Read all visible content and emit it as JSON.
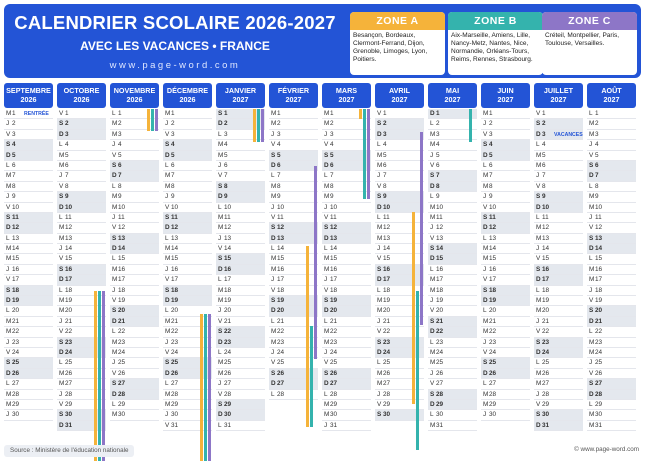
{
  "title": "CALENDRIER SCOLAIRE 2026-2027",
  "subtitle": "AVEC LES VACANCES • FRANCE",
  "website": "www.page-word.com",
  "colors": {
    "primary": "#2354d6",
    "zone_a": "#f5b33a",
    "zone_b": "#34b3ad",
    "zone_c": "#8d76c7"
  },
  "zones": [
    {
      "label": "ZONE A",
      "color": "#f5b33a",
      "cities": "Besançon, Bordeaux, Clermont-Ferrand, Dijon, Grenoble, Limoges, Lyon, Poitiers."
    },
    {
      "label": "ZONE B",
      "color": "#34b3ad",
      "cities": "Aix-Marseille, Amiens, Lille, Nancy-Metz, Nantes, Nice, Normandie, Orléans-Tours, Reims, Rennes, Strasbourg."
    },
    {
      "label": "ZONE C",
      "color": "#8d76c7",
      "cities": "Créteil, Montpellier, Paris, Toulouse, Versailles."
    }
  ],
  "months": [
    {
      "name": "SEPTEMBRE",
      "year": "2026",
      "start": 2,
      "days": 30,
      "notes": {
        "1": "RENTRÉE"
      },
      "vacations": []
    },
    {
      "name": "OCTOBRE",
      "year": "2026",
      "start": 4,
      "days": 31,
      "notes": {},
      "vacations": [
        {
          "zone": "zone_a",
          "from": 17,
          "to": 31
        },
        {
          "zone": "zone_b",
          "from": 17,
          "to": 31
        },
        {
          "zone": "zone_c",
          "from": 17,
          "to": 31
        }
      ]
    },
    {
      "name": "NOVEMBRE",
      "year": "2026",
      "start": 0,
      "days": 30,
      "notes": {},
      "vacations": [
        {
          "zone": "zone_a",
          "from": 1,
          "to": 2
        },
        {
          "zone": "zone_b",
          "from": 1,
          "to": 2
        },
        {
          "zone": "zone_c",
          "from": 1,
          "to": 2
        }
      ]
    },
    {
      "name": "DÉCEMBRE",
      "year": "2026",
      "start": 2,
      "days": 31,
      "notes": {},
      "vacations": [
        {
          "zone": "zone_a",
          "from": 19,
          "to": 31
        },
        {
          "zone": "zone_b",
          "from": 19,
          "to": 31
        },
        {
          "zone": "zone_c",
          "from": 19,
          "to": 31
        }
      ]
    },
    {
      "name": "JANVIER",
      "year": "2027",
      "start": 5,
      "days": 31,
      "notes": {},
      "vacations": [
        {
          "zone": "zone_a",
          "from": 1,
          "to": 3
        },
        {
          "zone": "zone_b",
          "from": 1,
          "to": 3
        },
        {
          "zone": "zone_c",
          "from": 1,
          "to": 3
        }
      ]
    },
    {
      "name": "FÉVRIER",
      "year": "2027",
      "start": 1,
      "days": 28,
      "notes": {},
      "vacations": [
        {
          "zone": "zone_c",
          "from": 6,
          "to": 22
        },
        {
          "zone": "zone_a",
          "from": 13,
          "to": 28
        },
        {
          "zone": "zone_b",
          "from": 20,
          "to": 28
        }
      ]
    },
    {
      "name": "MARS",
      "year": "2027",
      "start": 1,
      "days": 31,
      "notes": {},
      "vacations": [
        {
          "zone": "zone_c",
          "from": 1,
          "to": 8
        },
        {
          "zone": "zone_a",
          "from": 1,
          "to": 1
        },
        {
          "zone": "zone_b",
          "from": 1,
          "to": 8
        }
      ]
    },
    {
      "name": "AVRIL",
      "year": "2027",
      "start": 4,
      "days": 30,
      "notes": {},
      "vacations": [
        {
          "zone": "zone_c",
          "from": 3,
          "to": 19
        },
        {
          "zone": "zone_a",
          "from": 10,
          "to": 26
        },
        {
          "zone": "zone_b",
          "from": 17,
          "to": 30
        }
      ]
    },
    {
      "name": "MAI",
      "year": "2027",
      "start": 6,
      "days": 31,
      "notes": {},
      "vacations": [
        {
          "zone": "zone_b",
          "from": 1,
          "to": 3
        }
      ]
    },
    {
      "name": "JUIN",
      "year": "2027",
      "start": 2,
      "days": 30,
      "notes": {},
      "vacations": []
    },
    {
      "name": "JUILLET",
      "year": "2027",
      "start": 4,
      "days": 31,
      "notes": {
        "3": "VACANCES"
      },
      "vacations": []
    },
    {
      "name": "AOÛT",
      "year": "2027",
      "start": 0,
      "days": 31,
      "notes": {},
      "vacations": []
    }
  ],
  "weekday_letters": [
    "L",
    "M",
    "M",
    "J",
    "V",
    "S",
    "D"
  ],
  "source": "Source : Ministère de l'éducation nationale",
  "site_ref": "© www.page-word.com"
}
